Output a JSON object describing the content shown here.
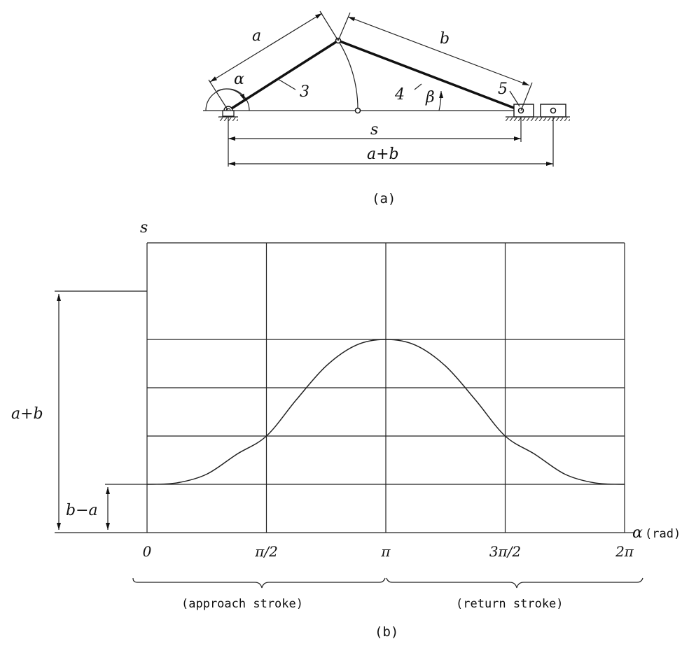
{
  "part_a": {
    "caption": "(a)",
    "labels": {
      "a": "a",
      "b": "b",
      "alpha": "α",
      "beta": "β",
      "link3": "3",
      "link4": "4",
      "link5": "5",
      "s": "s",
      "a_plus_b": "a+b"
    }
  },
  "part_b": {
    "caption": "(b)",
    "y_axis_label": "s",
    "x_axis_label": "α",
    "x_axis_unit": "(rad)",
    "height_label": "a+b",
    "offset_label": "b−a",
    "approach": "(approach stroke)",
    "return": "(return stroke)"
  },
  "chart_data": {
    "type": "line",
    "xlabel": "α (rad)",
    "ylabel": "s",
    "x_ticks": [
      "0",
      "π/2",
      "π",
      "3π/2",
      "2π"
    ],
    "x_tick_values": [
      0,
      1.5708,
      3.1416,
      4.7124,
      6.2832
    ],
    "xlim": [
      0,
      6.2832
    ],
    "ylim": [
      0,
      5
    ],
    "grid": true,
    "series": [
      {
        "values_description_free": true,
        "x": [
          0,
          0.3927,
          0.7854,
          1.1781,
          1.5708,
          1.9635,
          2.3562,
          2.7489,
          3.1416,
          3.5343,
          3.927,
          4.3197,
          4.7124,
          5.1051,
          5.4978,
          5.8905,
          6.2832
        ],
        "y": [
          1.0,
          1.03,
          1.21,
          1.62,
          2.0,
          2.75,
          3.45,
          3.88,
          4.0,
          3.88,
          3.45,
          2.75,
          2.0,
          1.62,
          1.21,
          1.03,
          1.0
        ]
      }
    ]
  }
}
